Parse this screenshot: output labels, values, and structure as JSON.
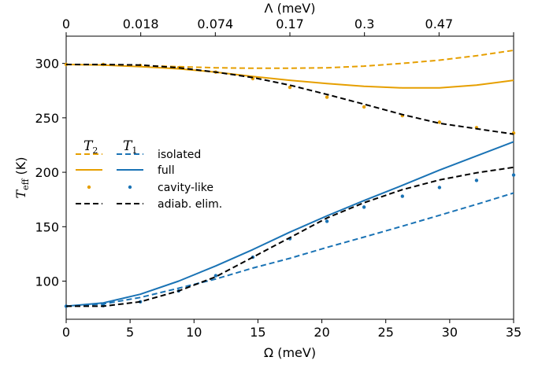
{
  "chart_data": {
    "type": "line",
    "xlabel": "Ω (meV)",
    "xlim": [
      0,
      35
    ],
    "x_ticks": [
      0,
      5,
      10,
      15,
      20,
      25,
      30,
      35
    ],
    "top_axis": {
      "label": "Λ (meV)",
      "tick_positions": [
        0,
        5.833,
        11.667,
        17.5,
        23.333,
        29.167,
        35
      ],
      "tick_labels": [
        "0",
        "0.018",
        "0.074",
        "0.17",
        "0.3",
        "0.47"
      ]
    },
    "ylabel_main": "T",
    "ylabel_sub": "eff",
    "ylabel_unit": "(K)",
    "ylim": [
      65,
      325
    ],
    "y_ticks": [
      100,
      150,
      200,
      250,
      300
    ],
    "legend": {
      "position": "center-left",
      "col_headers": [
        {
          "sym": "T",
          "sub": "2"
        },
        {
          "sym": "T",
          "sub": "1"
        }
      ],
      "rows": [
        "isolated",
        "full",
        "cavity-like",
        "adiab. elim."
      ]
    },
    "colors": {
      "T2": "#e69f00",
      "T1": "#1a73b5",
      "adiab": "#000000"
    },
    "series": [
      {
        "group": "T2",
        "style": "dashed",
        "x": [
          0,
          2.9,
          5.8,
          8.8,
          11.7,
          14.6,
          17.5,
          20.4,
          23.3,
          26.3,
          29.2,
          32.1,
          35
        ],
        "y": [
          299,
          298.5,
          298,
          297,
          296,
          295.5,
          295.5,
          296,
          297.5,
          300,
          303,
          307,
          312
        ]
      },
      {
        "group": "T2",
        "style": "solid",
        "x": [
          0,
          2.9,
          5.8,
          8.8,
          11.7,
          14.6,
          17.5,
          20.4,
          23.3,
          26.3,
          29.2,
          32.1,
          35
        ],
        "y": [
          299,
          298.5,
          297,
          295,
          292,
          288,
          284.5,
          281.5,
          279,
          277.5,
          277.5,
          280,
          284.5
        ]
      },
      {
        "group": "T2",
        "style": "dots",
        "x": [
          0,
          2.9,
          5.8,
          8.8,
          11.7,
          14.6,
          17.5,
          20.4,
          23.3,
          26.3,
          29.2,
          32.1,
          35
        ],
        "y": [
          299,
          299,
          298,
          296,
          292,
          286,
          278,
          269,
          260,
          252,
          246,
          241,
          236
        ]
      },
      {
        "group": "T1",
        "style": "dashed",
        "x": [
          0,
          2.9,
          5.8,
          8.8,
          11.7,
          14.6,
          17.5,
          20.4,
          23.3,
          26.3,
          29.2,
          32.1,
          35
        ],
        "y": [
          77,
          79,
          85,
          93.5,
          102,
          112,
          121,
          131,
          140.5,
          150.5,
          160.5,
          170.5,
          181
        ]
      },
      {
        "group": "T1",
        "style": "solid",
        "x": [
          0,
          2.9,
          5.8,
          8.8,
          11.7,
          14.6,
          17.5,
          20.4,
          23.3,
          26.3,
          29.2,
          32.1,
          35
        ],
        "y": [
          77,
          80,
          88,
          100,
          114,
          129,
          145,
          160,
          174,
          188,
          202,
          215,
          228
        ]
      },
      {
        "group": "T1",
        "style": "dots",
        "x": [
          0,
          2.9,
          5.8,
          8.8,
          11.7,
          14.6,
          17.5,
          20.4,
          23.3,
          26.3,
          29.2,
          32.1,
          35
        ],
        "y": [
          77,
          77.5,
          81,
          91,
          105,
          122,
          139,
          155,
          168,
          178,
          186,
          192.5,
          197.5
        ]
      },
      {
        "group": "adiab",
        "style": "dashed",
        "x": [
          0,
          2.9,
          5.8,
          8.8,
          11.7,
          14.6,
          17.5,
          20.4,
          23.3,
          26.3,
          29.2,
          32.1,
          35
        ],
        "y": [
          299,
          299,
          298.5,
          296,
          292,
          287,
          280,
          271.5,
          262.5,
          253,
          245,
          240,
          235
        ]
      },
      {
        "group": "adiab",
        "style": "dashed",
        "x": [
          0,
          2.9,
          5.8,
          8.8,
          11.7,
          14.6,
          17.5,
          20.4,
          23.3,
          26.3,
          29.2,
          32.1,
          35
        ],
        "y": [
          77,
          77,
          81,
          91,
          104,
          122,
          140,
          158,
          172,
          184,
          193,
          199.5,
          204.5
        ]
      }
    ]
  }
}
